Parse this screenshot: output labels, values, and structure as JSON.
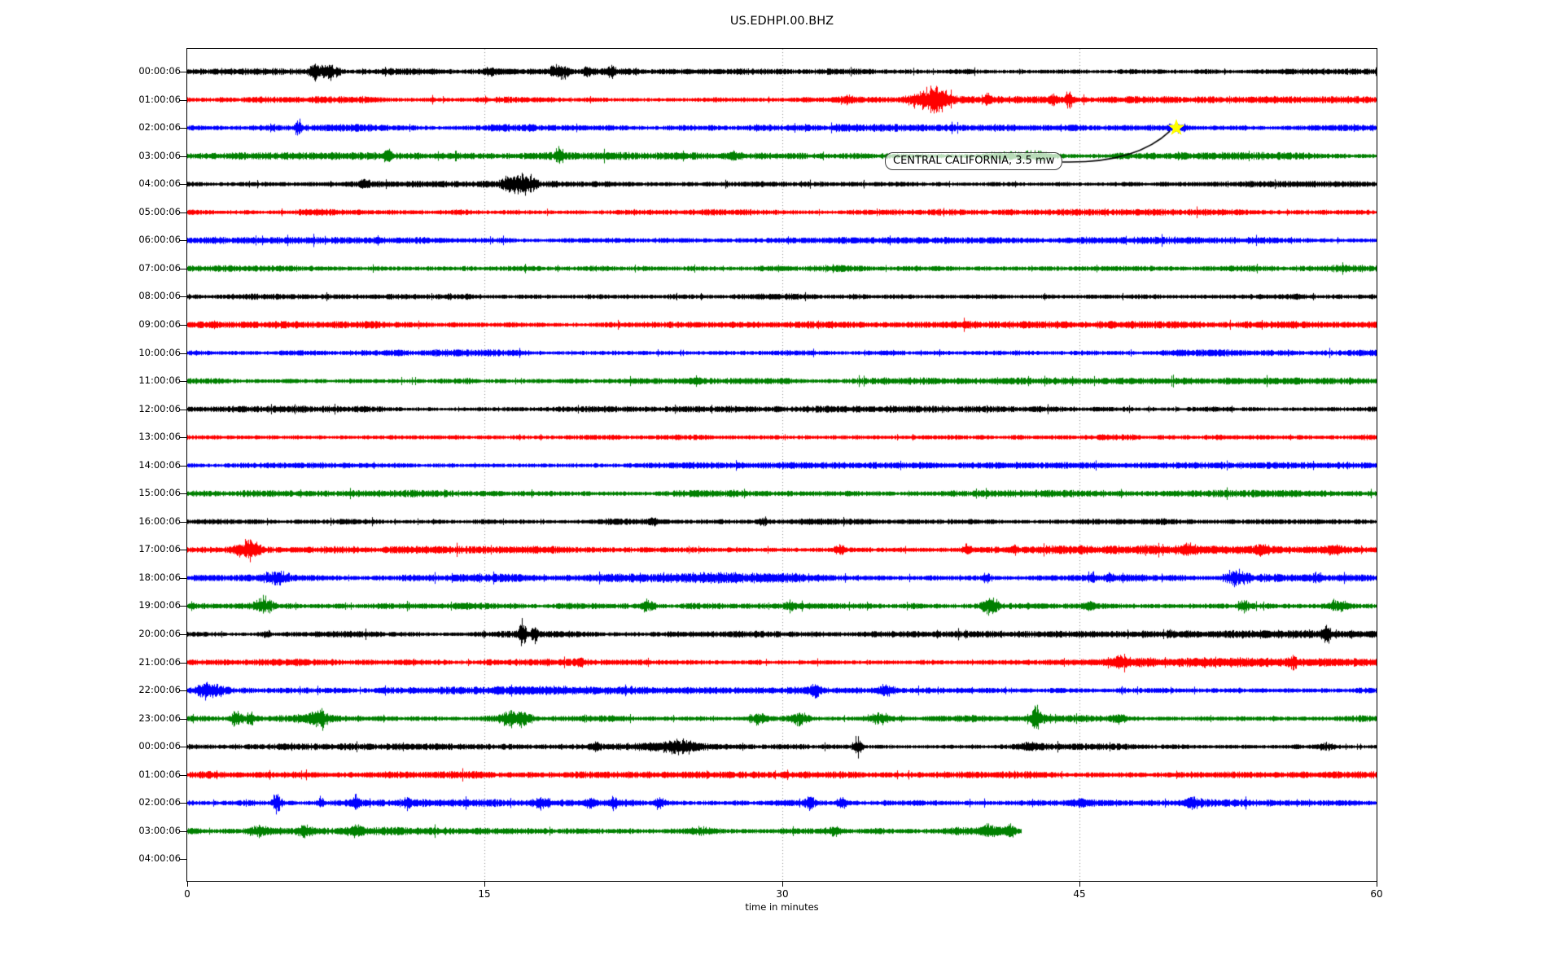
{
  "header": {
    "title": "US.EDHPI.00.BHZ"
  },
  "axes": {
    "xlabel": "time in minutes",
    "x_min": 0,
    "x_max": 60,
    "x_ticks": [
      0,
      15,
      30,
      45,
      60
    ],
    "grid_minutes": [
      15,
      30,
      45
    ],
    "grid_color": "#8a8a8a"
  },
  "annotation": {
    "text": "CENTRAL CALIFORNIA, 3.5 mw",
    "row_index": 2,
    "minute": 49.9,
    "star_color": "#ffff00"
  },
  "palette": {
    "trace_cycle": [
      "#000000",
      "#ff0000",
      "#0000ff",
      "#008000"
    ]
  },
  "chart_data": {
    "type": "line",
    "subtype": "seismogram-dayplot",
    "title": "US.EDHPI.00.BHZ",
    "xlabel": "time in minutes",
    "x_range_minutes": [
      0,
      60
    ],
    "minutes_per_row": 60,
    "rows": [
      {
        "label": "00:00:06",
        "color": "#000000",
        "noise": 2.7,
        "end_minute": 60,
        "events": [
          [
            6.5,
            7,
            0.25
          ],
          [
            7.3,
            6,
            0.3
          ],
          [
            15.2,
            3,
            0.2
          ],
          [
            18.6,
            4,
            0.3
          ],
          [
            19.0,
            3,
            0.2
          ],
          [
            20.2,
            4,
            0.15
          ],
          [
            21.4,
            5,
            0.12
          ]
        ]
      },
      {
        "label": "01:00:06",
        "color": "#ff0000",
        "noise": 2.8,
        "end_minute": 60,
        "events": [
          [
            33.2,
            3,
            0.3
          ],
          [
            37.0,
            6,
            0.5
          ],
          [
            37.7,
            9,
            0.3
          ],
          [
            38.3,
            5,
            0.3
          ],
          [
            40.4,
            5,
            0.12
          ],
          [
            43.7,
            5,
            0.15
          ],
          [
            44.5,
            10,
            0.12
          ]
        ]
      },
      {
        "label": "02:00:06",
        "color": "#0000ff",
        "noise": 3.0,
        "end_minute": 60,
        "events": [
          [
            5.6,
            7,
            0.12
          ],
          [
            50.0,
            3,
            0.4
          ]
        ]
      },
      {
        "label": "03:00:06",
        "color": "#008000",
        "noise": 3.0,
        "end_minute": 60,
        "events": [
          [
            10.1,
            7,
            0.12
          ],
          [
            18.7,
            6,
            0.1
          ],
          [
            27.6,
            3,
            0.3
          ],
          [
            41.5,
            3,
            0.8
          ],
          [
            43.0,
            3,
            0.5
          ]
        ]
      },
      {
        "label": "04:00:06",
        "color": "#000000",
        "noise": 2.6,
        "end_minute": 60,
        "events": [
          [
            8.9,
            3,
            0.2
          ],
          [
            16.1,
            6,
            0.2
          ],
          [
            16.7,
            10,
            0.25
          ],
          [
            17.3,
            7,
            0.2
          ]
        ]
      },
      {
        "label": "05:00:06",
        "color": "#ff0000",
        "noise": 2.6,
        "end_minute": 60,
        "events": []
      },
      {
        "label": "06:00:06",
        "color": "#0000ff",
        "noise": 2.8,
        "end_minute": 60,
        "events": []
      },
      {
        "label": "07:00:06",
        "color": "#008000",
        "noise": 3.0,
        "end_minute": 60,
        "events": []
      },
      {
        "label": "08:00:06",
        "color": "#000000",
        "noise": 2.9,
        "end_minute": 60,
        "events": []
      },
      {
        "label": "09:00:06",
        "color": "#ff0000",
        "noise": 2.9,
        "end_minute": 60,
        "events": []
      },
      {
        "label": "10:00:06",
        "color": "#0000ff",
        "noise": 2.8,
        "end_minute": 60,
        "events": []
      },
      {
        "label": "11:00:06",
        "color": "#008000",
        "noise": 2.8,
        "end_minute": 60,
        "events": []
      },
      {
        "label": "12:00:06",
        "color": "#000000",
        "noise": 2.6,
        "end_minute": 60,
        "events": []
      },
      {
        "label": "13:00:06",
        "color": "#ff0000",
        "noise": 2.8,
        "end_minute": 60,
        "events": []
      },
      {
        "label": "14:00:06",
        "color": "#0000ff",
        "noise": 2.6,
        "end_minute": 60,
        "events": []
      },
      {
        "label": "15:00:06",
        "color": "#008000",
        "noise": 2.8,
        "end_minute": 60,
        "events": []
      },
      {
        "label": "16:00:06",
        "color": "#000000",
        "noise": 2.6,
        "end_minute": 60,
        "events": [
          [
            23.5,
            3,
            0.15
          ],
          [
            29.0,
            3,
            0.2
          ]
        ]
      },
      {
        "label": "17:00:06",
        "color": "#ff0000",
        "noise": 3.0,
        "end_minute": 60,
        "events": [
          [
            2.8,
            5,
            0.3
          ],
          [
            3.3,
            6,
            0.25
          ],
          [
            32.9,
            3,
            0.2
          ],
          [
            39.3,
            4,
            0.15
          ],
          [
            41.7,
            3,
            0.15
          ],
          [
            51.0,
            1.3,
            7
          ],
          [
            50.5,
            3,
            0.2
          ],
          [
            54.2,
            3,
            0.2
          ],
          [
            58.0,
            3,
            0.3
          ]
        ]
      },
      {
        "label": "18:00:06",
        "color": "#0000ff",
        "noise": 3.2,
        "end_minute": 60,
        "events": [
          [
            4.5,
            5,
            0.5
          ],
          [
            27.0,
            2,
            3
          ],
          [
            40.3,
            4,
            0.15
          ],
          [
            45.6,
            4,
            0.15
          ],
          [
            46.5,
            4,
            0.12
          ],
          [
            52.9,
            6,
            0.4
          ],
          [
            57.0,
            3,
            0.2
          ]
        ]
      },
      {
        "label": "19:00:06",
        "color": "#008000",
        "noise": 3.0,
        "end_minute": 60,
        "events": [
          [
            3.9,
            8,
            0.3
          ],
          [
            23.2,
            6,
            0.2
          ],
          [
            30.5,
            3,
            0.2
          ],
          [
            40.5,
            7,
            0.3
          ],
          [
            45.5,
            3,
            0.15
          ],
          [
            53.3,
            5,
            0.15
          ],
          [
            58.0,
            5,
            0.4
          ]
        ]
      },
      {
        "label": "20:00:06",
        "color": "#000000",
        "noise": 2.6,
        "end_minute": 60,
        "events": [
          [
            4.0,
            3,
            0.15
          ],
          [
            16.9,
            12,
            0.12
          ],
          [
            17.5,
            7,
            0.12
          ],
          [
            49.6,
            3,
            0.12
          ],
          [
            55.0,
            1.2,
            4.5
          ],
          [
            57.5,
            6,
            0.15
          ]
        ]
      },
      {
        "label": "21:00:06",
        "color": "#ff0000",
        "noise": 2.9,
        "end_minute": 60,
        "events": [
          [
            19.8,
            3,
            0.15
          ],
          [
            47.0,
            3,
            0.3
          ],
          [
            52.0,
            1.5,
            6
          ],
          [
            55.8,
            7,
            0.12
          ]
        ]
      },
      {
        "label": "22:00:06",
        "color": "#0000ff",
        "noise": 3.1,
        "end_minute": 60,
        "events": [
          [
            0.9,
            7,
            0.25
          ],
          [
            1.5,
            4,
            0.3
          ],
          [
            20.0,
            2,
            2
          ],
          [
            31.7,
            5,
            0.2
          ],
          [
            35.2,
            4,
            0.25
          ]
        ]
      },
      {
        "label": "23:00:06",
        "color": "#008000",
        "noise": 3.0,
        "end_minute": 60,
        "events": [
          [
            2.5,
            8,
            0.2
          ],
          [
            3.2,
            5,
            0.2
          ],
          [
            6.3,
            6,
            0.2
          ],
          [
            6.8,
            7,
            0.15
          ],
          [
            16.3,
            7,
            0.4
          ],
          [
            17.0,
            5,
            0.3
          ],
          [
            28.8,
            4,
            0.3
          ],
          [
            30.9,
            5,
            0.3
          ],
          [
            34.9,
            5,
            0.4
          ],
          [
            42.8,
            9,
            0.25
          ],
          [
            47.0,
            3,
            0.3
          ]
        ]
      },
      {
        "label": "00:00:06",
        "color": "#000000",
        "noise": 2.6,
        "end_minute": 60,
        "events": [
          [
            20.6,
            3,
            0.2
          ],
          [
            24.2,
            2.2,
            1.3
          ],
          [
            25.0,
            3,
            0.5
          ],
          [
            33.8,
            10,
            0.15
          ],
          [
            42.5,
            3,
            0.3
          ],
          [
            57.5,
            3,
            0.3
          ]
        ]
      },
      {
        "label": "01:00:06",
        "color": "#ff0000",
        "noise": 2.9,
        "end_minute": 60,
        "events": []
      },
      {
        "label": "02:00:06",
        "color": "#0000ff",
        "noise": 3.0,
        "end_minute": 60,
        "events": [
          [
            4.5,
            10,
            0.15
          ],
          [
            6.7,
            5,
            0.12
          ],
          [
            8.5,
            5,
            0.12
          ],
          [
            11.1,
            4,
            0.12
          ],
          [
            17.9,
            5,
            0.2
          ],
          [
            20.3,
            5,
            0.15
          ],
          [
            21.5,
            4,
            0.12
          ],
          [
            23.8,
            5,
            0.2
          ],
          [
            31.4,
            4,
            0.15
          ],
          [
            33.0,
            5,
            0.2
          ],
          [
            45.0,
            2,
            0.3
          ],
          [
            50.7,
            4,
            0.3
          ]
        ]
      },
      {
        "label": "03:00:06",
        "color": "#008000",
        "noise": 3.2,
        "end_minute": 42.1,
        "events": [
          [
            3.6,
            4,
            0.4
          ],
          [
            5.9,
            4,
            0.3
          ],
          [
            8.4,
            4,
            0.3
          ],
          [
            26.0,
            3,
            0.4
          ],
          [
            32.6,
            3,
            0.3
          ],
          [
            40.5,
            5,
            0.3
          ],
          [
            41.5,
            6,
            0.15
          ]
        ]
      },
      {
        "label": "04:00:06",
        "color": "#000000",
        "noise": 0,
        "end_minute": 0,
        "events": []
      }
    ]
  }
}
